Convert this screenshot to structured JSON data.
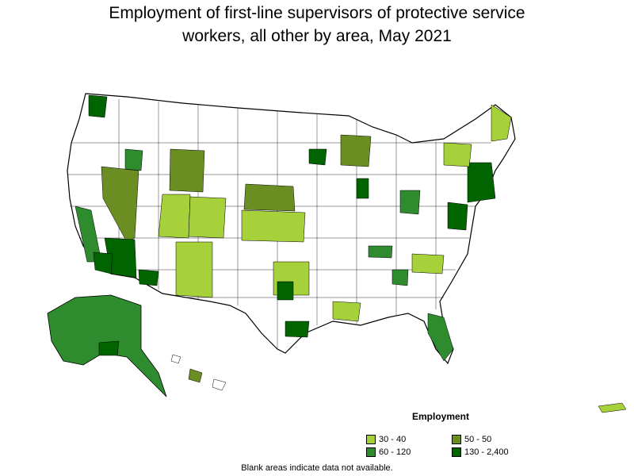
{
  "title_line1": "Employment of first-line supervisors of protective service",
  "title_line2": "workers, all other by area, May 2021",
  "legend": {
    "title": "Employment",
    "items": [
      {
        "label": "30 - 40",
        "color": "#a6d13a"
      },
      {
        "label": "50 - 50",
        "color": "#6b8e23"
      },
      {
        "label": "60 - 120",
        "color": "#2e8b2e"
      },
      {
        "label": "130 - 2,400",
        "color": "#006400"
      }
    ]
  },
  "footnote": "Blank areas indicate data not available."
}
